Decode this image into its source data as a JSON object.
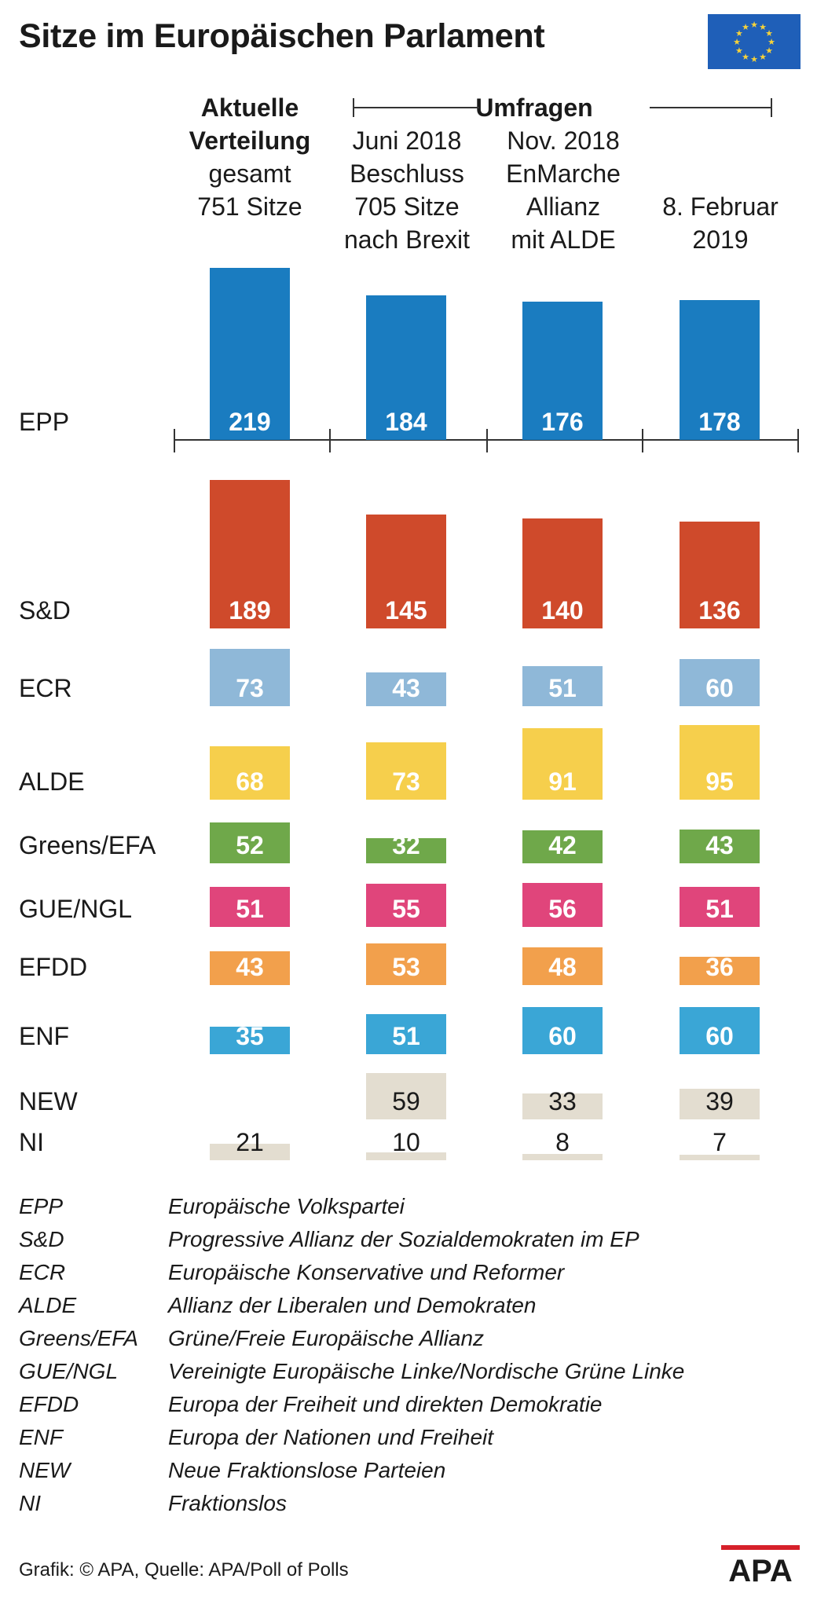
{
  "header": {
    "title": "Sitze im Europäischen Parlament",
    "umfragen_label": "Umfragen"
  },
  "columns": [
    {
      "line1": "Aktuelle",
      "line2": "Verteilung",
      "line3": "gesamt",
      "line4": "751 Sitze"
    },
    {
      "line1": "Juni 2018",
      "line2": "Beschluss",
      "line3": "705 Sitze",
      "line4": "nach Brexit"
    },
    {
      "line1": "Nov. 2018",
      "line2": "EnMarche",
      "line3": "Allianz",
      "line4": "mit ALDE"
    },
    {
      "line1": "8. Februar",
      "line2": "2019"
    }
  ],
  "colors": {
    "EPP": "#1a7cc0",
    "S&D": "#cf4a2b",
    "ECR": "#8fb8d8",
    "ALDE": "#f6cf4c",
    "Greens/EFA": "#6fa84a",
    "GUE/NGL": "#e0457b",
    "EFDD": "#f2a04c",
    "ENF": "#3aa6d6",
    "NEW": "#e3ddd0",
    "NI": "#e3ddd0",
    "label_light": "#ffffff",
    "label_dark": "#1a1a1a",
    "axis": "#333333"
  },
  "chart_data": {
    "type": "bar",
    "title": "Sitze im Europäischen Parlament",
    "categories": [
      "Aktuelle Verteilung gesamt 751 Sitze",
      "Juni 2018 Beschluss 705 Sitze nach Brexit",
      "Nov. 2018 EnMarche Allianz mit ALDE",
      "8. Februar 2019"
    ],
    "group_label": "Umfragen",
    "series": [
      {
        "name": "EPP",
        "values": [
          219,
          184,
          176,
          178
        ]
      },
      {
        "name": "S&D",
        "values": [
          189,
          145,
          140,
          136
        ]
      },
      {
        "name": "ECR",
        "values": [
          73,
          43,
          51,
          60
        ]
      },
      {
        "name": "ALDE",
        "values": [
          68,
          73,
          91,
          95
        ]
      },
      {
        "name": "Greens/EFA",
        "values": [
          52,
          32,
          42,
          43
        ]
      },
      {
        "name": "GUE/NGL",
        "values": [
          51,
          55,
          56,
          51
        ]
      },
      {
        "name": "EFDD",
        "values": [
          43,
          53,
          48,
          36
        ]
      },
      {
        "name": "ENF",
        "values": [
          35,
          51,
          60,
          60
        ]
      },
      {
        "name": "NEW",
        "values": [
          null,
          59,
          33,
          39
        ]
      },
      {
        "name": "NI",
        "values": [
          21,
          10,
          8,
          7
        ]
      }
    ]
  },
  "legend": [
    {
      "abbr": "EPP",
      "desc": "Europäische Volkspartei"
    },
    {
      "abbr": "S&D",
      "desc": "Progressive Allianz der Sozialdemokraten im EP"
    },
    {
      "abbr": "ECR",
      "desc": "Europäische Konservative und Reformer"
    },
    {
      "abbr": "ALDE",
      "desc": "Allianz der Liberalen und Demokraten"
    },
    {
      "abbr": "Greens/EFA",
      "desc": "Grüne/Freie Europäische Allianz"
    },
    {
      "abbr": "GUE/NGL",
      "desc": "Vereinigte Europäische Linke/Nordische Grüne Linke"
    },
    {
      "abbr": "EFDD",
      "desc": "Europa der Freiheit und direkten Demokratie"
    },
    {
      "abbr": "ENF",
      "desc": "Europa der Nationen und Freiheit"
    },
    {
      "abbr": "NEW",
      "desc": "Neue Fraktionslose Parteien"
    },
    {
      "abbr": "NI",
      "desc": "Fraktionslos"
    }
  ],
  "footer": {
    "credit": "Grafik: © APA, Quelle: APA/Poll of Polls",
    "logo": "APA"
  }
}
